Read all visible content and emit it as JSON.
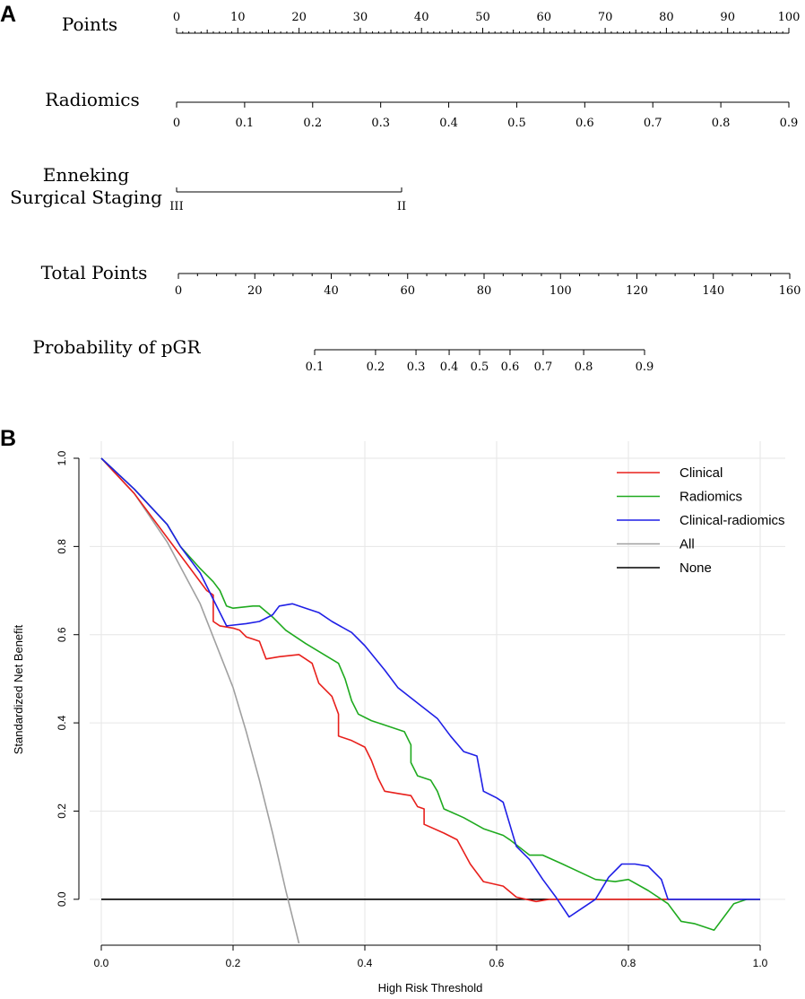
{
  "panel_a": {
    "letter": "A",
    "rows": [
      {
        "label": "Points",
        "ticks": [
          "0",
          "10",
          "20",
          "30",
          "40",
          "50",
          "60",
          "70",
          "80",
          "90",
          "100"
        ]
      },
      {
        "label": "Radiomics",
        "ticks": [
          "0",
          "0.1",
          "0.2",
          "0.3",
          "0.4",
          "0.5",
          "0.6",
          "0.7",
          "0.8",
          "0.9"
        ]
      },
      {
        "label_lines": [
          "Enneking",
          "Surgical Staging"
        ],
        "ticks": [
          "III",
          "II"
        ]
      },
      {
        "label": "Total Points",
        "ticks": [
          "0",
          "20",
          "40",
          "60",
          "80",
          "100",
          "120",
          "140",
          "160"
        ]
      },
      {
        "label": "Probability of pGR",
        "ticks": [
          "0.1",
          "0.2",
          "0.3",
          "0.4",
          "0.5",
          "0.6",
          "0.7",
          "0.8",
          "0.9"
        ]
      }
    ]
  },
  "chart_data": {
    "type": "line",
    "panel_letter": "B",
    "title": "",
    "xlabel": "High Risk Threshold",
    "ylabel": "Standardized Net Benefit",
    "xlim": [
      0,
      1
    ],
    "ylim": [
      -0.1,
      1.0
    ],
    "x_ticks": [
      "0.0",
      "0.2",
      "0.4",
      "0.6",
      "0.8",
      "1.0"
    ],
    "y_ticks": [
      "0.0",
      "0.2",
      "0.4",
      "0.6",
      "0.8",
      "1.0"
    ],
    "grid": true,
    "legend_position": "top-right",
    "series": [
      {
        "name": "Clinical",
        "color": "#e8201c",
        "x": [
          0,
          0.05,
          0.1,
          0.13,
          0.16,
          0.17,
          0.17,
          0.18,
          0.2,
          0.21,
          0.22,
          0.23,
          0.24,
          0.25,
          0.27,
          0.3,
          0.31,
          0.32,
          0.33,
          0.35,
          0.36,
          0.36,
          0.38,
          0.4,
          0.41,
          0.42,
          0.43,
          0.45,
          0.47,
          0.48,
          0.49,
          0.49,
          0.52,
          0.54,
          0.56,
          0.58,
          0.61,
          0.63,
          0.66,
          0.68,
          1.0
        ],
        "values": [
          1.0,
          0.92,
          0.82,
          0.76,
          0.7,
          0.69,
          0.63,
          0.62,
          0.615,
          0.61,
          0.595,
          0.59,
          0.585,
          0.545,
          0.55,
          0.555,
          0.545,
          0.535,
          0.49,
          0.46,
          0.42,
          0.37,
          0.36,
          0.345,
          0.315,
          0.275,
          0.245,
          0.24,
          0.235,
          0.21,
          0.205,
          0.17,
          0.15,
          0.135,
          0.08,
          0.04,
          0.03,
          0.005,
          -0.005,
          0.0,
          0.0
        ]
      },
      {
        "name": "Radiomics",
        "color": "#1faa1f",
        "x": [
          0,
          0.05,
          0.1,
          0.12,
          0.15,
          0.17,
          0.18,
          0.19,
          0.2,
          0.23,
          0.24,
          0.26,
          0.28,
          0.31,
          0.36,
          0.37,
          0.38,
          0.39,
          0.41,
          0.43,
          0.46,
          0.47,
          0.47,
          0.48,
          0.5,
          0.51,
          0.52,
          0.55,
          0.58,
          0.61,
          0.62,
          0.65,
          0.67,
          0.7,
          0.75,
          0.78,
          0.8,
          0.83,
          0.86,
          0.88,
          0.9,
          0.93,
          0.96,
          0.98,
          1.0
        ],
        "values": [
          1.0,
          0.93,
          0.85,
          0.8,
          0.75,
          0.72,
          0.7,
          0.665,
          0.66,
          0.665,
          0.665,
          0.64,
          0.61,
          0.58,
          0.535,
          0.5,
          0.45,
          0.42,
          0.405,
          0.395,
          0.38,
          0.35,
          0.31,
          0.28,
          0.27,
          0.245,
          0.205,
          0.185,
          0.16,
          0.145,
          0.135,
          0.1,
          0.1,
          0.08,
          0.045,
          0.04,
          0.045,
          0.02,
          -0.01,
          -0.05,
          -0.055,
          -0.07,
          -0.01,
          0.0,
          0.0
        ]
      },
      {
        "name": "Clinical-radiomics",
        "color": "#1f1fe6",
        "x": [
          0,
          0.05,
          0.1,
          0.12,
          0.15,
          0.17,
          0.19,
          0.22,
          0.24,
          0.26,
          0.27,
          0.29,
          0.3,
          0.31,
          0.33,
          0.35,
          0.38,
          0.4,
          0.43,
          0.45,
          0.48,
          0.51,
          0.53,
          0.55,
          0.57,
          0.58,
          0.6,
          0.61,
          0.63,
          0.65,
          0.67,
          0.69,
          0.71,
          0.73,
          0.75,
          0.77,
          0.79,
          0.81,
          0.83,
          0.85,
          0.86,
          0.9,
          1.0
        ],
        "values": [
          1.0,
          0.93,
          0.85,
          0.8,
          0.74,
          0.68,
          0.62,
          0.625,
          0.63,
          0.645,
          0.665,
          0.67,
          0.665,
          0.66,
          0.65,
          0.63,
          0.605,
          0.575,
          0.52,
          0.48,
          0.445,
          0.41,
          0.37,
          0.335,
          0.325,
          0.245,
          0.23,
          0.22,
          0.12,
          0.09,
          0.045,
          0.005,
          -0.04,
          -0.02,
          0.0,
          0.05,
          0.08,
          0.08,
          0.075,
          0.045,
          0.0,
          0.0,
          0.0
        ]
      },
      {
        "name": "All",
        "color": "#a0a0a0",
        "x": [
          0,
          0.05,
          0.1,
          0.15,
          0.2,
          0.22,
          0.24,
          0.26,
          0.28,
          0.3
        ],
        "values": [
          1.0,
          0.92,
          0.81,
          0.67,
          0.48,
          0.38,
          0.27,
          0.15,
          0.02,
          -0.1
        ]
      },
      {
        "name": "None",
        "color": "#000000",
        "x": [
          0,
          1.0
        ],
        "values": [
          0,
          0
        ]
      }
    ]
  }
}
